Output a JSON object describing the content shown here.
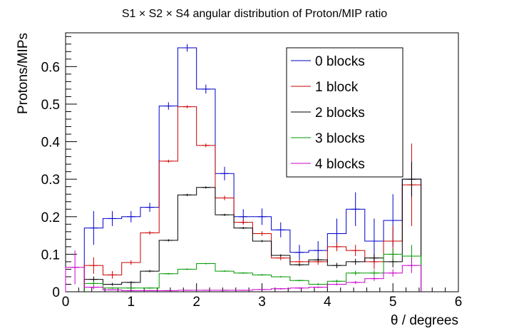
{
  "chart_data": {
    "type": "step-histogram",
    "title": "S1 × S2 × S4 angular distribution of Proton/MIP ratio",
    "xlabel": "θ / degrees",
    "ylabel": "Protons/MIPs",
    "xlim": [
      0,
      6
    ],
    "ylim": [
      0,
      0.69
    ],
    "x_ticks": [
      "0",
      "1",
      "2",
      "3",
      "4",
      "5",
      "6"
    ],
    "y_ticks": [
      "0",
      "0.1",
      "0.2",
      "0.3",
      "0.4",
      "0.5",
      "0.6"
    ],
    "grid": false,
    "legend_position": "top-right",
    "bin_edges": [
      0.0,
      0.286,
      0.571,
      0.857,
      1.143,
      1.429,
      1.714,
      2.0,
      2.286,
      2.571,
      2.857,
      3.143,
      3.429,
      3.714,
      4.0,
      4.286,
      4.571,
      4.857,
      5.143,
      5.429,
      5.714
    ],
    "series": [
      {
        "name": "0 blocks",
        "color": "#0000cc",
        "values": [
          null,
          0.17,
          0.195,
          0.2,
          0.225,
          0.495,
          0.65,
          0.54,
          0.315,
          0.2,
          0.2,
          0.165,
          0.105,
          0.11,
          0.155,
          0.22,
          0.135,
          0.19,
          0.3,
          null
        ],
        "errors": [
          null,
          0.045,
          0.02,
          0.015,
          0.012,
          0.01,
          0.01,
          0.012,
          0.018,
          0.02,
          0.022,
          0.02,
          0.02,
          0.025,
          0.04,
          0.045,
          0.06,
          0.07,
          0.05,
          null
        ]
      },
      {
        "name": "1 block",
        "color": "#cc0000",
        "values": [
          null,
          0.07,
          0.045,
          0.078,
          0.157,
          0.348,
          0.493,
          0.39,
          0.25,
          0.185,
          0.155,
          0.09,
          0.08,
          0.08,
          0.12,
          0.11,
          0.08,
          0.135,
          0.285,
          null
        ],
        "errors": [
          null,
          0.022,
          0.01,
          0.006,
          0.005,
          0.004,
          0.004,
          0.005,
          0.006,
          0.006,
          0.006,
          0.006,
          0.006,
          0.008,
          0.012,
          0.015,
          0.02,
          0.04,
          0.11,
          null
        ]
      },
      {
        "name": "2 blocks",
        "color": "#000000",
        "values": [
          null,
          0.033,
          0.02,
          0.025,
          0.055,
          0.137,
          0.258,
          0.278,
          0.205,
          0.17,
          0.135,
          0.097,
          0.072,
          0.085,
          0.07,
          0.08,
          0.09,
          0.08,
          0.3,
          null
        ],
        "errors": [
          null,
          0.008,
          0.004,
          0.003,
          0.003,
          0.003,
          0.003,
          0.003,
          0.003,
          0.003,
          0.003,
          0.003,
          0.004,
          0.005,
          0.007,
          0.008,
          0.01,
          0.015,
          0.045,
          null
        ]
      },
      {
        "name": "3 blocks",
        "color": "#009900",
        "values": [
          null,
          0.022,
          0.01,
          0.01,
          0.01,
          0.048,
          0.06,
          0.075,
          0.055,
          0.05,
          0.045,
          0.04,
          0.03,
          0.02,
          0.028,
          0.05,
          0.05,
          0.1,
          0.095,
          null
        ],
        "errors": [
          null,
          0.006,
          0.002,
          0.002,
          0.002,
          0.002,
          0.002,
          0.002,
          0.002,
          0.002,
          0.002,
          0.002,
          0.002,
          0.003,
          0.004,
          0.006,
          0.008,
          0.015,
          0.03,
          null
        ]
      },
      {
        "name": "4 blocks",
        "color": "#cc00cc",
        "values": [
          0.065,
          0.012,
          0.005,
          0.003,
          0.003,
          0.003,
          0.004,
          0.004,
          0.004,
          0.004,
          0.006,
          0.008,
          0.01,
          0.012,
          0.02,
          0.025,
          0.035,
          0.05,
          0.07,
          null
        ],
        "errors": [
          0.045,
          0.005,
          0.001,
          0.001,
          0.001,
          0.001,
          0.001,
          0.001,
          0.001,
          0.001,
          0.001,
          0.002,
          0.002,
          0.002,
          0.003,
          0.004,
          0.006,
          0.01,
          0.02,
          null
        ]
      }
    ]
  }
}
